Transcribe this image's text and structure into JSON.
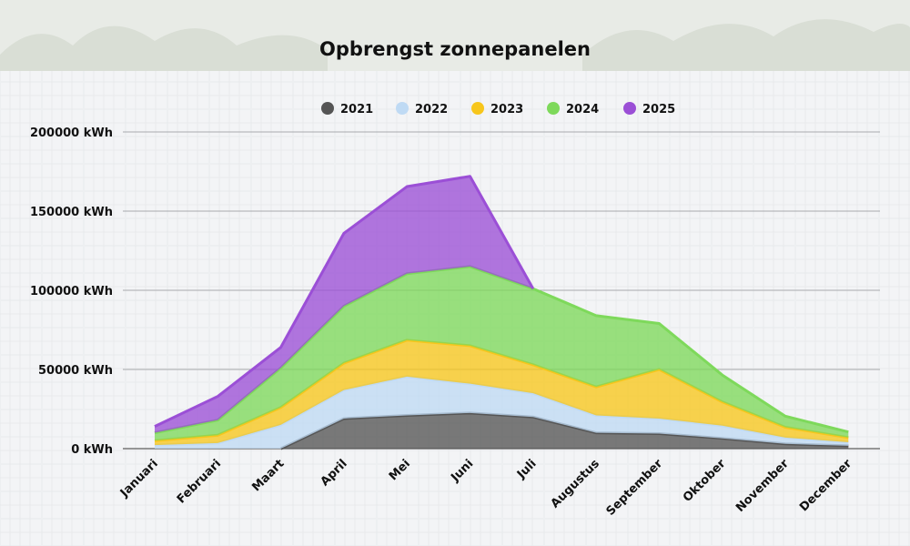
{
  "chart_data": {
    "type": "area",
    "title": "Opbrengst zonnepanelen",
    "xlabel": "",
    "ylabel": "",
    "ylim": [
      0,
      200000
    ],
    "y_ticks": [
      "0 kWh",
      "50000 kWh",
      "100000 kWh",
      "150000 kWh",
      "200000 kWh"
    ],
    "y_tick_values": [
      0,
      50000,
      100000,
      150000,
      200000
    ],
    "grid": true,
    "stacked": true,
    "legend_position": "top",
    "categories": [
      "Januari",
      "Februari",
      "Maart",
      "April",
      "Mei",
      "Juni",
      "Juli",
      "Augustus",
      "September",
      "Oktober",
      "November",
      "December"
    ],
    "series": [
      {
        "name": "2021",
        "color": "#555555",
        "values": [
          null,
          null,
          0,
          19000,
          21000,
          22500,
          20000,
          10000,
          9500,
          6500,
          3000,
          1800
        ]
      },
      {
        "name": "2022",
        "color": "#bfdaf4",
        "values": [
          2200,
          3500,
          15000,
          18000,
          24500,
          18500,
          15000,
          11000,
          9500,
          8000,
          4000,
          2200
        ]
      },
      {
        "name": "2023",
        "color": "#f7c61c",
        "values": [
          2800,
          5000,
          11000,
          17000,
          23000,
          24000,
          18000,
          18000,
          31000,
          15000,
          6500,
          3000
        ]
      },
      {
        "name": "2024",
        "color": "#7ed95b",
        "values": [
          5000,
          9500,
          25000,
          36000,
          42000,
          50000,
          48000,
          45000,
          29000,
          17000,
          7000,
          3500
        ]
      },
      {
        "name": "2025",
        "color": "#9b4fd6",
        "values": [
          4000,
          15000,
          13000,
          46000,
          55000,
          57000,
          0,
          null,
          null,
          null,
          null,
          null
        ]
      }
    ]
  }
}
